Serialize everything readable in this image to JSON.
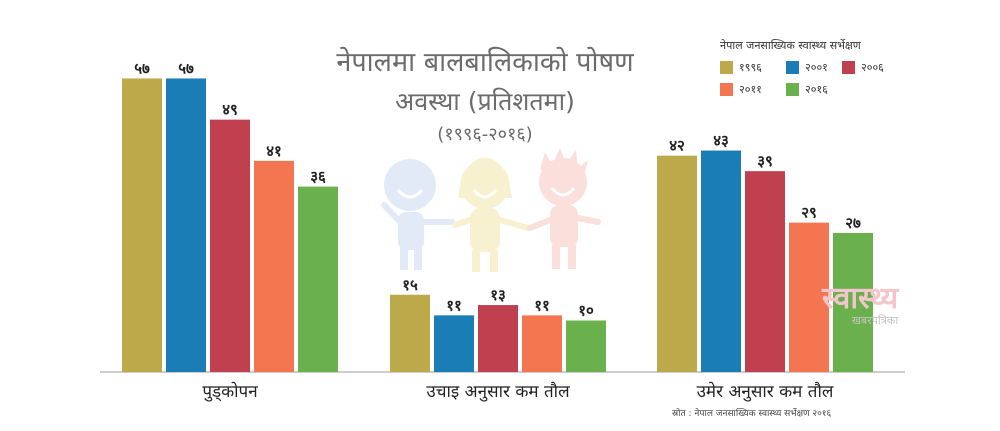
{
  "title": {
    "line1": "नेपालमा बालबालिकाको पोषण",
    "line2": "अवस्था (प्रतिशतमा)",
    "line3": "(१९९६-२०१६)"
  },
  "legend": {
    "title": "नेपाल जनसाख्यिक स्वास्थ्य सर्भेक्षण"
  },
  "watermark": {
    "main": "स्वास्थ्य",
    "sub": "खबरपत्रिका"
  },
  "source": "स्रोत : नेपाल जनसाख्यिक स्वास्थ्य सर्भेक्षण २०१६",
  "colors": {
    "1996": "#bca94a",
    "2001": "#1a7db5",
    "2006": "#c0404f",
    "2011": "#f47650",
    "2016": "#6ab14e"
  },
  "chart_data": {
    "type": "bar",
    "categories": [
      "पुड्कोपन",
      "उचाइ अनुसार कम तौल",
      "उमेर अनुसार कम तौल"
    ],
    "series": [
      {
        "name": "१९९६",
        "color": "#bca94a",
        "values": [
          57,
          15,
          42
        ],
        "labels": [
          "५७",
          "१५",
          "४२"
        ]
      },
      {
        "name": "२००१",
        "color": "#1a7db5",
        "values": [
          57,
          11,
          43
        ],
        "labels": [
          "५७",
          "११",
          "४३"
        ]
      },
      {
        "name": "२००६",
        "color": "#c0404f",
        "values": [
          49,
          13,
          39
        ],
        "labels": [
          "४९",
          "१३",
          "३९"
        ]
      },
      {
        "name": "२०११",
        "color": "#f47650",
        "values": [
          41,
          11,
          29
        ],
        "labels": [
          "४१",
          "११",
          "२९"
        ]
      },
      {
        "name": "२०१६",
        "color": "#6ab14e",
        "values": [
          36,
          10,
          27
        ],
        "labels": [
          "३६",
          "१०",
          "२७"
        ]
      }
    ],
    "ylim": [
      0,
      60
    ],
    "grid": false,
    "legend_position": "top-right"
  }
}
